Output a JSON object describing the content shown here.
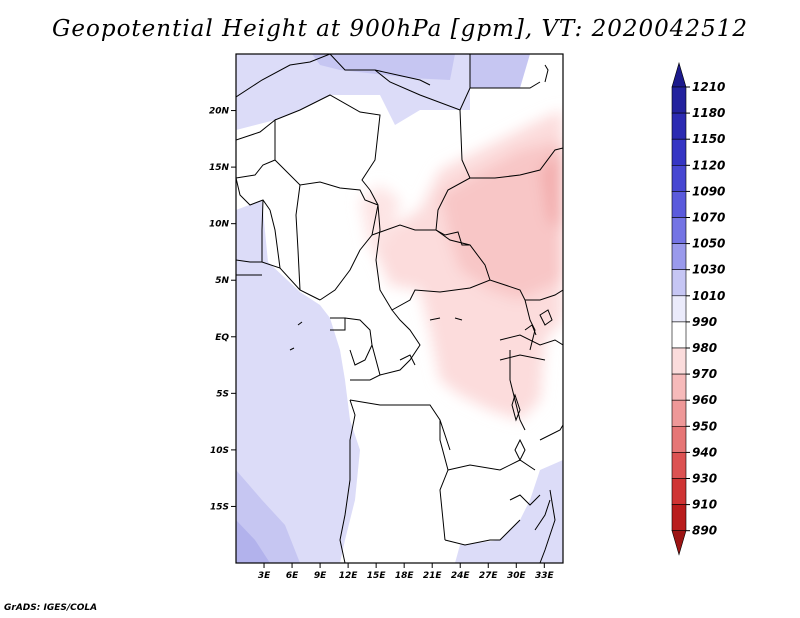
{
  "title": "Geopotential Height at 900hPa [gpm], VT: 2020042512",
  "footer": "GrADS: IGES/COLA",
  "chart_data": {
    "type": "heatmap",
    "title": "Geopotential Height at 900hPa [gpm], VT: 2020042512",
    "variable": "Geopotential Height",
    "level": "900hPa",
    "units": "gpm",
    "valid_time": "2020042512",
    "x_range": [
      0,
      35
    ],
    "y_range": [
      -20,
      25
    ],
    "x_ticks": [
      {
        "label": "3E",
        "value": 3
      },
      {
        "label": "6E",
        "value": 6
      },
      {
        "label": "9E",
        "value": 9
      },
      {
        "label": "12E",
        "value": 12
      },
      {
        "label": "15E",
        "value": 15
      },
      {
        "label": "18E",
        "value": 18
      },
      {
        "label": "21E",
        "value": 21
      },
      {
        "label": "24E",
        "value": 24
      },
      {
        "label": "27E",
        "value": 27
      },
      {
        "label": "30E",
        "value": 30
      },
      {
        "label": "33E",
        "value": 33
      }
    ],
    "y_ticks": [
      {
        "label": "20N",
        "value": 20
      },
      {
        "label": "15N",
        "value": 15
      },
      {
        "label": "10N",
        "value": 10
      },
      {
        "label": "5N",
        "value": 5
      },
      {
        "label": "EQ",
        "value": 0
      },
      {
        "label": "5S",
        "value": -5
      },
      {
        "label": "10S",
        "value": -10
      },
      {
        "label": "15S",
        "value": -15
      }
    ],
    "colorbar": {
      "levels": [
        1210,
        1180,
        1150,
        1120,
        1090,
        1070,
        1050,
        1030,
        1010,
        990,
        980,
        970,
        960,
        950,
        940,
        930,
        910,
        890
      ],
      "colors": [
        "#1c1a8c",
        "#23229e",
        "#2b2ab2",
        "#3535c4",
        "#4747d2",
        "#5a5adc",
        "#7474e4",
        "#9a9aec",
        "#c6c6f4",
        "#ebebfb",
        "#ffffff",
        "#fbdcdc",
        "#f6baba",
        "#ee9898",
        "#e67676",
        "#dc5252",
        "#cf3434",
        "#b91d1d",
        "#9c1414"
      ]
    }
  }
}
